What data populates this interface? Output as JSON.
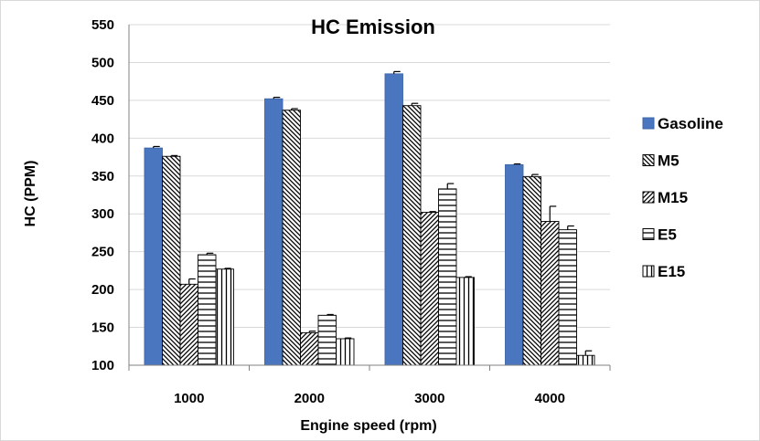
{
  "chart_data": {
    "type": "bar",
    "title": "HC Emission",
    "xlabel": "Engine speed (rpm)",
    "ylabel": "HC (PPM)",
    "ylim": [
      100,
      550
    ],
    "yticks": [
      100,
      150,
      200,
      250,
      300,
      350,
      400,
      450,
      500,
      550
    ],
    "categories": [
      "1000",
      "2000",
      "3000",
      "4000"
    ],
    "grid": "horizontal",
    "legend_position": "right",
    "series": [
      {
        "name": "Gasoline",
        "fill": "solid",
        "color": "#4a76c0",
        "values": [
          387,
          452,
          485,
          365
        ],
        "errors": [
          2,
          2,
          3,
          1
        ]
      },
      {
        "name": "M5",
        "fill": "diagonal-down",
        "color": "#000000",
        "values": [
          376,
          437,
          443,
          349
        ],
        "errors": [
          1,
          2,
          3,
          3
        ]
      },
      {
        "name": "M15",
        "fill": "diagonal-up",
        "color": "#000000",
        "values": [
          207,
          143,
          302,
          290
        ],
        "errors": [
          7,
          2,
          1,
          20
        ]
      },
      {
        "name": "E5",
        "fill": "horizontal",
        "color": "#000000",
        "values": [
          246,
          166,
          333,
          279
        ],
        "errors": [
          2,
          1,
          7,
          5
        ]
      },
      {
        "name": "E15",
        "fill": "vertical",
        "color": "#000000",
        "values": [
          227,
          135,
          216,
          113
        ],
        "errors": [
          1,
          1,
          1,
          6
        ]
      }
    ]
  }
}
